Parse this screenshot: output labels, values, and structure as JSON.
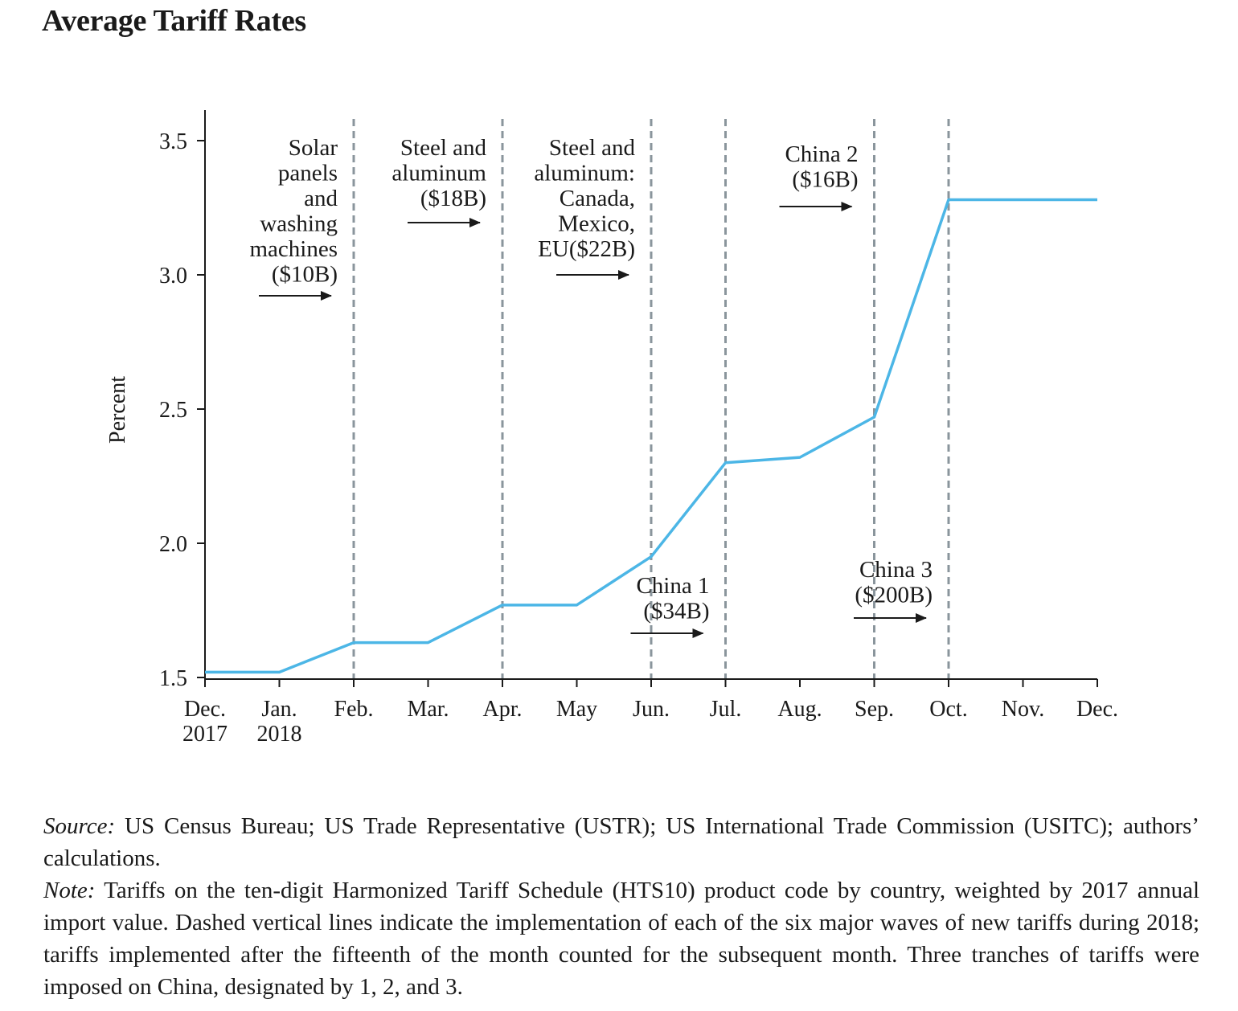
{
  "title": "Average Tariff Rates",
  "chart_data": {
    "type": "line",
    "title": "Average Tariff Rates",
    "xlabel": "",
    "ylabel": "Percent",
    "x_tick_labels": [
      [
        "Dec.",
        "2017"
      ],
      [
        "Jan.",
        "2018"
      ],
      [
        "Feb."
      ],
      [
        "Mar."
      ],
      [
        "Apr."
      ],
      [
        "May"
      ],
      [
        "Jun."
      ],
      [
        "Jul."
      ],
      [
        "Aug."
      ],
      [
        "Sep."
      ],
      [
        "Oct."
      ],
      [
        "Nov."
      ],
      [
        "Dec."
      ]
    ],
    "y_ticks": [
      1.5,
      2.0,
      2.5,
      3.0,
      3.5
    ],
    "y_tick_labels": [
      "1.5",
      "2.0",
      "2.5",
      "3.0",
      "3.5"
    ],
    "ylim": [
      1.5,
      3.6
    ],
    "grid": false,
    "series": [
      {
        "color": "#4cb6e6",
        "x": [
          "Dec. 2017",
          "Jan. 2018",
          "Feb.",
          "Mar.",
          "Apr.",
          "May",
          "Jun.",
          "Jul.",
          "Aug.",
          "Sep.",
          "Oct.",
          "Nov.",
          "Dec."
        ],
        "values": [
          1.52,
          1.52,
          1.63,
          1.63,
          1.77,
          1.77,
          1.95,
          2.3,
          2.32,
          2.47,
          3.28,
          3.28,
          3.28
        ]
      }
    ],
    "vertical_dashed_lines": [
      "Feb.",
      "Apr.",
      "Jun.",
      "Jul.",
      "Sep.",
      "Oct."
    ],
    "annotations": [
      {
        "lines": [
          "Solar",
          "panels",
          "and",
          "washing",
          "machines",
          "($10B)"
        ],
        "line": "Feb."
      },
      {
        "lines": [
          "Steel and",
          "aluminum",
          "($18B)"
        ],
        "line": "Apr."
      },
      {
        "lines": [
          "Steel and",
          "aluminum:",
          "Canada,",
          "Mexico,",
          "EU($22B)"
        ],
        "line": "Jun."
      },
      {
        "lines": [
          "China 1",
          "($34B)"
        ],
        "line": "Jul."
      },
      {
        "lines": [
          "China 2",
          "($16B)"
        ],
        "line": "Sep."
      },
      {
        "lines": [
          "China 3",
          "($200B)"
        ],
        "line": "Oct."
      }
    ],
    "colors": {
      "line": "#4cb6e6",
      "dashed": "#8a959c",
      "axis": "#1a1a1a"
    }
  },
  "footnote": {
    "source_label": "Source:",
    "source_text": " US Census Bureau; US Trade Representative (USTR); US International Trade Commission (USITC); authors’ calculations.",
    "note_label": "Note:",
    "note_text": " Tariffs on the ten-digit Harmonized Tariff Schedule (HTS10) product code by country, weighted by 2017 annual import value. Dashed vertical lines indicate the implementation of each of the six major waves of new tariffs during 2018; tariffs implemented after the fifteenth of the month counted for the subsequent month. Three tranches of tariffs were imposed on China, designated by 1, 2, and 3."
  }
}
